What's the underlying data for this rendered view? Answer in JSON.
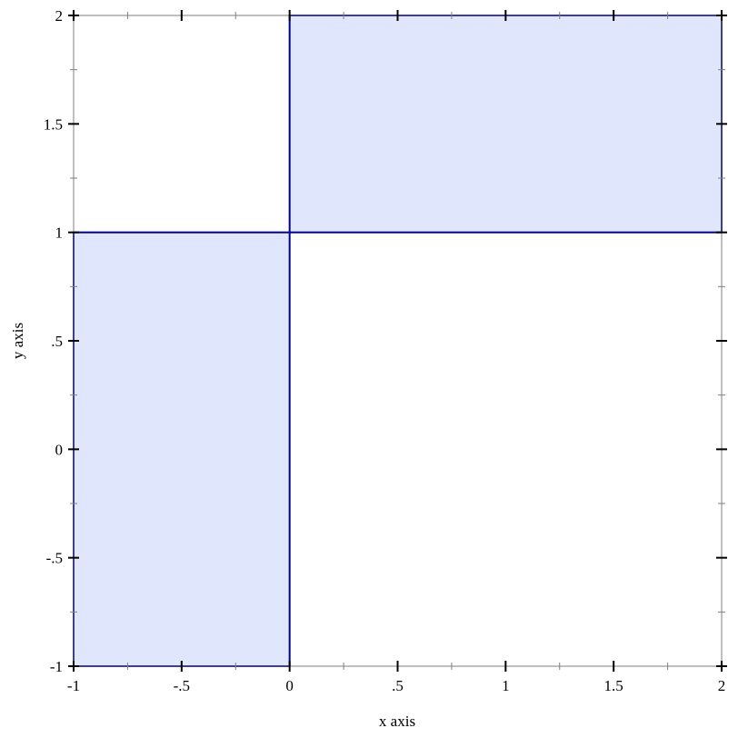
{
  "chart_data": {
    "type": "rectangles",
    "title": "",
    "xlabel": "x axis",
    "ylabel": "y axis",
    "xlim": [
      -1,
      2
    ],
    "ylim": [
      -1,
      2
    ],
    "x_tick_labels": [
      "-1",
      "-.5",
      "0",
      ".5",
      "1",
      "1.5",
      "2"
    ],
    "y_tick_labels": [
      "-1",
      "-.5",
      "0",
      ".5",
      "1",
      "1.5",
      "2"
    ],
    "x_ticks": [
      -1,
      -0.5,
      0,
      0.5,
      1,
      1.5,
      2
    ],
    "y_ticks": [
      -1,
      -0.5,
      0,
      0.5,
      1,
      1.5,
      2
    ],
    "minor_step": 0.25,
    "grid": false,
    "rectangles": [
      {
        "x": [
          -1,
          0
        ],
        "y": [
          -1,
          1
        ]
      },
      {
        "x": [
          0,
          2
        ],
        "y": [
          1,
          2
        ]
      }
    ],
    "colors": {
      "fill": "#e0e6fc",
      "stroke": "#00008b",
      "axis": "#7f7f7f",
      "major_tick": "#000000",
      "minor_tick": "#7f7f7f"
    }
  }
}
